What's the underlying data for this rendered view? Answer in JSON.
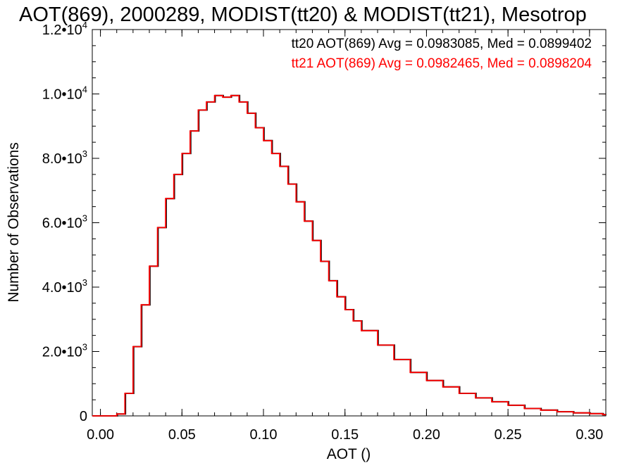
{
  "chart_data": {
    "type": "line",
    "title": "AOT(869), 2000289, MODIST(tt20) & MODIST(tt21), Mesotrop",
    "xlabel": "AOT ()",
    "ylabel": "Number of Observations",
    "xlim": [
      -0.005,
      0.31
    ],
    "ylim": [
      0,
      12000
    ],
    "x_ticks": [
      {
        "value": 0.0,
        "label": "0.00"
      },
      {
        "value": 0.05,
        "label": "0.05"
      },
      {
        "value": 0.1,
        "label": "0.10"
      },
      {
        "value": 0.15,
        "label": "0.15"
      },
      {
        "value": 0.2,
        "label": "0.20"
      },
      {
        "value": 0.25,
        "label": "0.25"
      },
      {
        "value": 0.3,
        "label": "0.30"
      }
    ],
    "y_ticks": [
      {
        "value": 0,
        "mantissa": "0",
        "exponent": ""
      },
      {
        "value": 2000,
        "mantissa": "2.0•10",
        "exponent": "3"
      },
      {
        "value": 4000,
        "mantissa": "4.0•10",
        "exponent": "3"
      },
      {
        "value": 6000,
        "mantissa": "6.0•10",
        "exponent": "3"
      },
      {
        "value": 8000,
        "mantissa": "8.0•10",
        "exponent": "3"
      },
      {
        "value": 10000,
        "mantissa": "1.0•10",
        "exponent": "4"
      },
      {
        "value": 12000,
        "mantissa": "1.2•10",
        "exponent": "4"
      }
    ],
    "grid": false,
    "legend_position": "top-right",
    "x": [
      0.0,
      0.01,
      0.015,
      0.02,
      0.025,
      0.03,
      0.035,
      0.04,
      0.045,
      0.05,
      0.055,
      0.06,
      0.065,
      0.07,
      0.075,
      0.08,
      0.085,
      0.09,
      0.095,
      0.1,
      0.105,
      0.11,
      0.115,
      0.12,
      0.125,
      0.13,
      0.135,
      0.14,
      0.145,
      0.15,
      0.155,
      0.16,
      0.17,
      0.18,
      0.19,
      0.2,
      0.21,
      0.22,
      0.23,
      0.24,
      0.25,
      0.26,
      0.27,
      0.28,
      0.29,
      0.3,
      0.308
    ],
    "series": [
      {
        "name": "tt20",
        "color": "#000000",
        "stat_label": "tt20 AOT(869) Avg = 0.0983085, Med = 0.0899402",
        "values": [
          0,
          60,
          700,
          2150,
          3450,
          4650,
          5850,
          6750,
          7500,
          8150,
          8850,
          9500,
          9750,
          9950,
          9900,
          9950,
          9750,
          9400,
          8950,
          8550,
          8150,
          7750,
          7200,
          6650,
          6050,
          5450,
          4800,
          4200,
          3700,
          3300,
          2950,
          2650,
          2200,
          1750,
          1350,
          1100,
          900,
          700,
          560,
          440,
          330,
          230,
          180,
          130,
          95,
          70,
          40
        ]
      },
      {
        "name": "tt21",
        "color": "#ff0000",
        "stat_label": "tt21 AOT(869) Avg = 0.0982465, Med = 0.0898204",
        "values": [
          0,
          60,
          700,
          2150,
          3450,
          4650,
          5850,
          6750,
          7500,
          8150,
          8850,
          9500,
          9750,
          9950,
          9900,
          9950,
          9750,
          9400,
          8950,
          8550,
          8150,
          7750,
          7200,
          6650,
          6050,
          5450,
          4800,
          4200,
          3700,
          3300,
          2950,
          2650,
          2200,
          1750,
          1350,
          1100,
          900,
          700,
          560,
          440,
          330,
          230,
          180,
          130,
          95,
          70,
          40
        ]
      }
    ]
  }
}
